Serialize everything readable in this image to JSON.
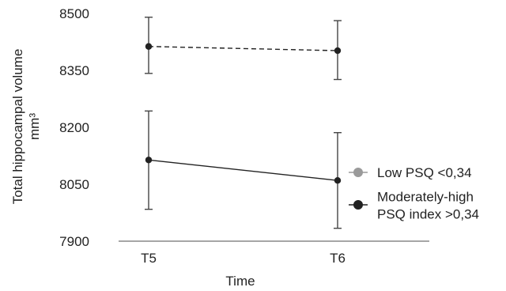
{
  "chart_data": {
    "type": "line",
    "title": "",
    "xlabel": "Time",
    "ylabel": "Total hippocampal volume",
    "ylabel_unit": "mm³",
    "categories": [
      "T5",
      "T6"
    ],
    "ylim": [
      7900,
      8500
    ],
    "yticks": [
      7900,
      8050,
      8200,
      8350,
      8500
    ],
    "grid": false,
    "legend_position": "right",
    "series": [
      {
        "name": "Low PSQ <0,34",
        "values": [
          8413,
          8402
        ],
        "error_low": [
          8342,
          8326
        ],
        "error_high": [
          8490,
          8481
        ],
        "line_style": "dashed",
        "color": "#222222",
        "marker_color": "#222222",
        "legend_color": "#9a9a9a"
      },
      {
        "name": "Moderately-high PSQ index >0,34",
        "legend_lines": [
          "Moderately-high",
          "PSQ index >0,34"
        ],
        "values": [
          8114,
          8060
        ],
        "error_low": [
          7984,
          7934
        ],
        "error_high": [
          8243,
          8186
        ],
        "line_style": "solid",
        "color": "#222222",
        "marker_color": "#222222",
        "legend_color": "#222222"
      }
    ]
  }
}
